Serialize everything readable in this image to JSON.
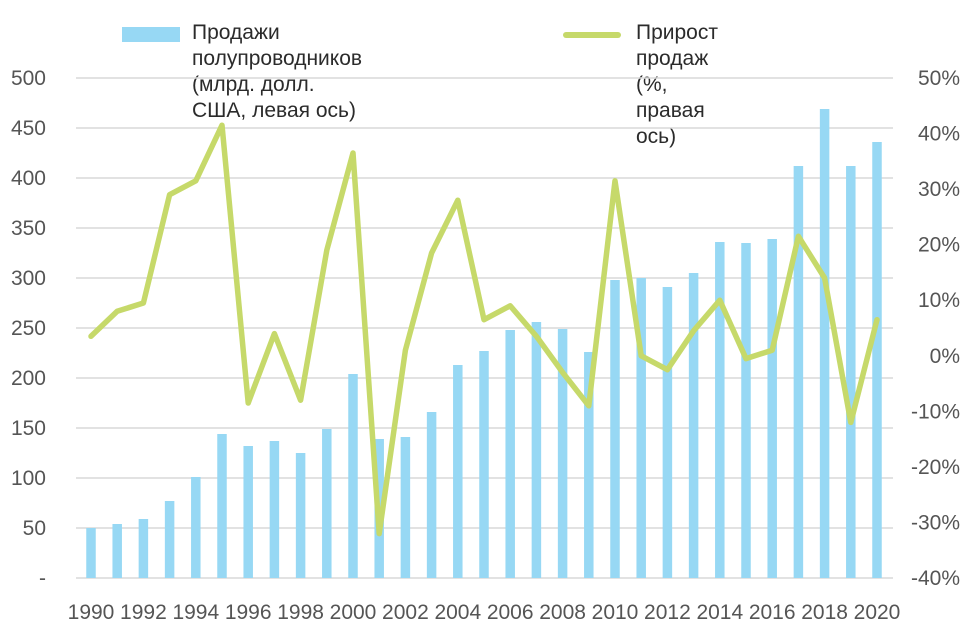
{
  "chart_data": {
    "type": "bar+line",
    "x": [
      1990,
      1991,
      1992,
      1993,
      1994,
      1995,
      1996,
      1997,
      1998,
      1999,
      2000,
      2001,
      2002,
      2003,
      2004,
      2005,
      2006,
      2007,
      2008,
      2009,
      2010,
      2011,
      2012,
      2013,
      2014,
      2015,
      2016,
      2017,
      2018,
      2019,
      2020
    ],
    "x_tick_labels": [
      "1990",
      "1992",
      "1994",
      "1996",
      "1998",
      "2000",
      "2002",
      "2004",
      "2006",
      "2008",
      "2010",
      "2012",
      "2014",
      "2016",
      "2018",
      "2020"
    ],
    "series": [
      {
        "name_line1": "Продажи полупроводников",
        "name_line2": "(млрд. долл. США, левая ось)",
        "type": "bar",
        "axis": "left",
        "color": "#97d8f4",
        "values": [
          50,
          54,
          59,
          77,
          101,
          144,
          132,
          137,
          125,
          149,
          204,
          139,
          141,
          166,
          213,
          227,
          248,
          256,
          249,
          226,
          298,
          300,
          291,
          305,
          336,
          335,
          339,
          412,
          469,
          412,
          436
        ]
      },
      {
        "name_line1": "Прирост продаж",
        "name_line2": "(%, правая ось)",
        "type": "line",
        "axis": "right",
        "color": "#c6d96a",
        "values": [
          3.5,
          8,
          9.5,
          29,
          31.5,
          41.5,
          -8.5,
          4,
          -8,
          19,
          36.5,
          -32,
          1,
          18.5,
          28,
          6.5,
          9,
          3.5,
          -3,
          -9,
          31.5,
          0,
          -2.5,
          4.5,
          10,
          -0.5,
          1,
          21.5,
          14,
          -12,
          6.5
        ]
      }
    ],
    "y_left": {
      "ylim": [
        0,
        500
      ],
      "ticks": [
        0,
        50,
        100,
        150,
        200,
        250,
        300,
        350,
        400,
        450,
        500
      ],
      "tick_labels": [
        "-",
        "50",
        "100",
        "150",
        "200",
        "250",
        "300",
        "350",
        "400",
        "450",
        "500"
      ]
    },
    "y_right": {
      "ylim": [
        -40,
        50
      ],
      "ticks": [
        -40,
        -30,
        -20,
        -10,
        0,
        10,
        20,
        30,
        40,
        50
      ],
      "tick_labels": [
        "-40%",
        "-30%",
        "-20%",
        "-10%",
        "0%",
        "10%",
        "20%",
        "30%",
        "40%",
        "50%"
      ]
    },
    "grid": true,
    "legend_position": "top",
    "gridline_color": "#d9d9d9",
    "tick_text_color": "#555555"
  }
}
